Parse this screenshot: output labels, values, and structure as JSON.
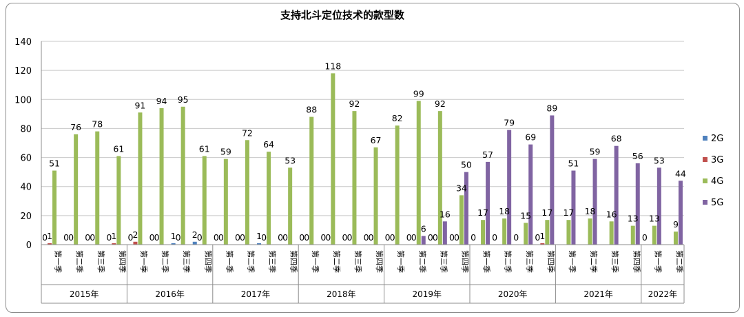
{
  "chart_data": {
    "type": "bar",
    "title": "支持北斗定位技术的款型数",
    "xlabel": "",
    "ylabel": "",
    "ylim": [
      0,
      140
    ],
    "yticks": [
      0,
      20,
      40,
      60,
      80,
      100,
      120,
      140
    ],
    "grid": true,
    "legend_position": "right",
    "quarter_labels": [
      "第一季",
      "第二季",
      "第三季",
      "第四季",
      "第一季",
      "第二季",
      "第三季",
      "第四季",
      "第一季",
      "第二季",
      "第三季",
      "第四季",
      "第一季",
      "第二季",
      "第三季",
      "第四季",
      "第一季",
      "第二季",
      "第三季",
      "第四季",
      "第一季",
      "第二季",
      "第三季",
      "第四季",
      "第一季",
      "第二季",
      "第三季",
      "第四季",
      "第一季",
      "第二季"
    ],
    "years": [
      {
        "label": "2015年",
        "count": 4
      },
      {
        "label": "2016年",
        "count": 4
      },
      {
        "label": "2017年",
        "count": 4
      },
      {
        "label": "2018年",
        "count": 4
      },
      {
        "label": "2019年",
        "count": 4
      },
      {
        "label": "2020年",
        "count": 4
      },
      {
        "label": "2021年",
        "count": 4
      },
      {
        "label": "2022年",
        "count": 2
      }
    ],
    "series": [
      {
        "name": "2G",
        "color": "#4f81bd",
        "values": [
          0,
          0,
          0,
          0,
          0,
          0,
          1,
          2,
          0,
          0,
          1,
          0,
          0,
          0,
          0,
          0,
          0,
          0,
          0,
          0,
          0,
          0,
          0,
          0,
          0,
          0,
          0,
          0,
          0,
          0
        ],
        "labels": [
          "0",
          "0",
          "0",
          "0",
          "0",
          "0",
          "1",
          "2",
          "0",
          "0",
          "1",
          "0",
          "0",
          "0",
          "0",
          "0",
          "0",
          "0",
          "0",
          "0",
          "0",
          "0",
          "0",
          "0",
          "",
          "",
          "",
          "",
          "0",
          ""
        ]
      },
      {
        "name": "3G",
        "color": "#c0504d",
        "values": [
          1,
          0,
          0,
          1,
          2,
          0,
          0,
          0,
          0,
          0,
          0,
          0,
          0,
          0,
          0,
          0,
          0,
          0,
          0,
          0,
          0,
          0,
          0,
          1,
          0,
          0,
          0,
          0,
          0,
          0
        ],
        "labels": [
          "1",
          "0",
          "0",
          "1",
          "2",
          "0",
          "0",
          "0",
          "0",
          "0",
          "0",
          "0",
          "0",
          "0",
          "0",
          "0",
          "0",
          "0",
          "0",
          "0",
          "",
          "",
          "",
          "1",
          "",
          "",
          "",
          "",
          "",
          ""
        ]
      },
      {
        "name": "4G",
        "color": "#9bbb59",
        "values": [
          51,
          76,
          78,
          61,
          91,
          94,
          95,
          61,
          59,
          72,
          64,
          53,
          88,
          118,
          92,
          67,
          82,
          99,
          92,
          34,
          17,
          18,
          15,
          17,
          17,
          18,
          16,
          13,
          13,
          9
        ],
        "labels": [
          "51",
          "76",
          "78",
          "61",
          "91",
          "94",
          "95",
          "61",
          "59",
          "72",
          "64",
          "53",
          "88",
          "118",
          "92",
          "67",
          "82",
          "99",
          "92",
          "34",
          "17",
          "18",
          "15",
          "17",
          "17",
          "18",
          "16",
          "13",
          "13",
          "9"
        ]
      },
      {
        "name": "5G",
        "color": "#8064a2",
        "values": [
          0,
          0,
          0,
          0,
          0,
          0,
          0,
          0,
          0,
          0,
          0,
          0,
          0,
          0,
          0,
          0,
          0,
          6,
          16,
          50,
          57,
          79,
          69,
          89,
          51,
          59,
          68,
          56,
          53,
          44
        ],
        "labels": [
          "",
          "",
          "",
          "",
          "",
          "",
          "",
          "",
          "",
          "",
          "",
          "",
          "",
          "",
          "",
          "",
          "",
          "6",
          "16",
          "50",
          "57",
          "79",
          "69",
          "89",
          "51",
          "59",
          "68",
          "56",
          "53",
          "44"
        ]
      }
    ]
  }
}
